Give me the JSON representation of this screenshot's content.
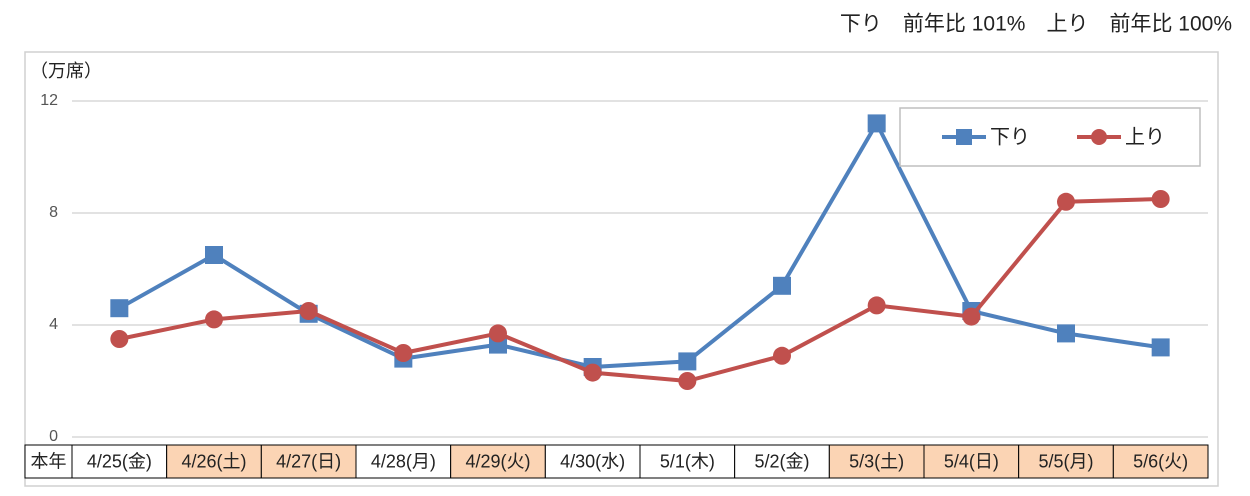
{
  "chart_data": {
    "type": "line",
    "annotation": "下り　前年比 101%　上り　前年比 100%",
    "y_label": "（万席）",
    "row_label": "本年",
    "categories": [
      "4/25(金)",
      "4/26(土)",
      "4/27(日)",
      "4/28(月)",
      "4/29(火)",
      "4/30(水)",
      "5/1(木)",
      "5/2(金)",
      "5/3(土)",
      "5/4(日)",
      "5/5(月)",
      "5/6(火)"
    ],
    "category_colors": [
      "#ffffff",
      "#fbd4b4",
      "#fbd4b4",
      "#ffffff",
      "#fbd4b4",
      "#ffffff",
      "#ffffff",
      "#ffffff",
      "#fbd4b4",
      "#fbd4b4",
      "#fbd4b4",
      "#fbd4b4"
    ],
    "series": [
      {
        "name": "下り",
        "color": "#4f81bd",
        "marker": "square",
        "values": [
          4.6,
          6.5,
          4.4,
          2.8,
          3.3,
          2.5,
          2.7,
          5.4,
          11.2,
          4.5,
          3.7,
          3.2
        ]
      },
      {
        "name": "上り",
        "color": "#c0504d",
        "marker": "circle",
        "values": [
          3.5,
          4.2,
          4.5,
          3.0,
          3.7,
          2.3,
          2.0,
          2.9,
          4.7,
          4.3,
          8.4,
          8.5
        ]
      }
    ],
    "ylim": [
      0,
      12
    ],
    "yticks": [
      0,
      4,
      8,
      12
    ],
    "grid": true,
    "legend": "upper right"
  }
}
